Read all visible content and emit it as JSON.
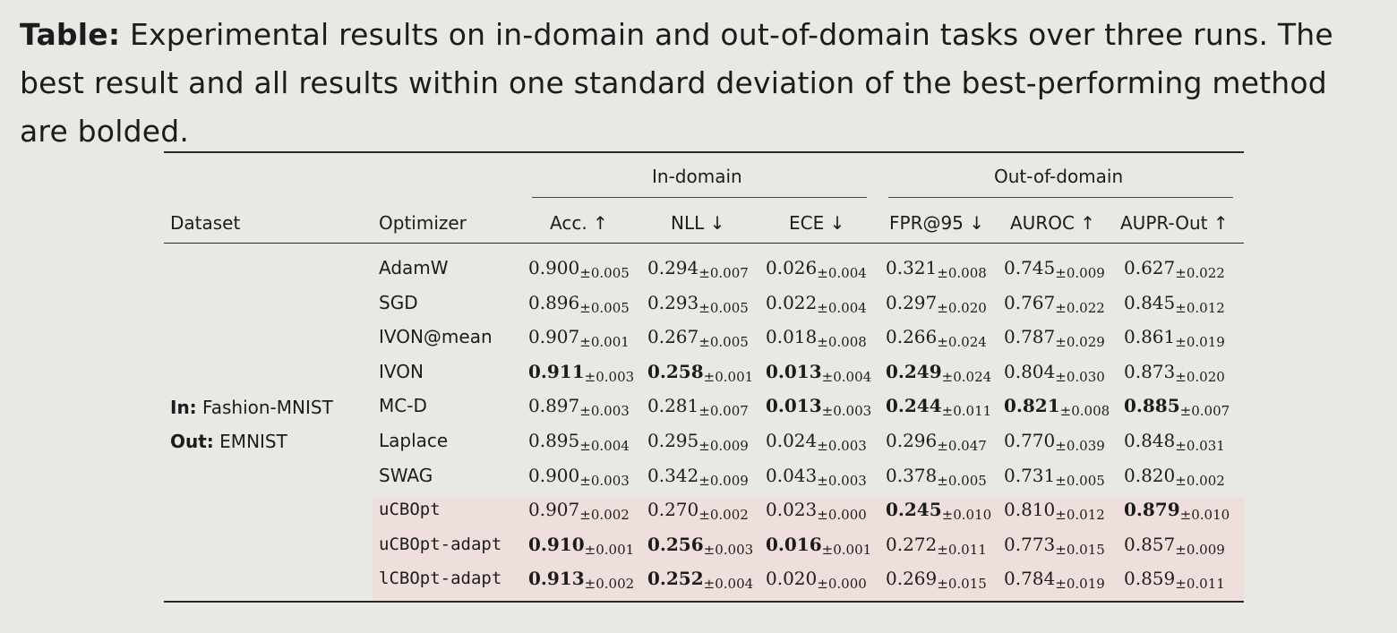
{
  "caption": {
    "label": "Table:",
    "text": "Experimental results on in-domain and out-of-domain tasks over three runs. The best result and all results within one standard deviation of the best-performing method are bolded."
  },
  "groups": {
    "in_domain": "In-domain",
    "out_domain": "Out-of-domain"
  },
  "headers": [
    "Dataset",
    "Optimizer",
    "Acc. ↑",
    "NLL ↓",
    "ECE ↓",
    "FPR@95 ↓",
    "AUROC ↑",
    "AUPR-Out ↑"
  ],
  "dataset": {
    "in_label": "In:",
    "in_value": "Fashion-MNIST",
    "out_label": "Out:",
    "out_value": "EMNIST"
  },
  "rows": [
    {
      "name": "AdamW",
      "mono": false,
      "cells": [
        [
          "0.900",
          "±0.005",
          false
        ],
        [
          "0.294",
          "±0.007",
          false
        ],
        [
          "0.026",
          "±0.004",
          false
        ],
        [
          "0.321",
          "±0.008",
          false
        ],
        [
          "0.745",
          "±0.009",
          false
        ],
        [
          "0.627",
          "±0.022",
          false
        ]
      ]
    },
    {
      "name": "SGD",
      "mono": false,
      "cells": [
        [
          "0.896",
          "±0.005",
          false
        ],
        [
          "0.293",
          "±0.005",
          false
        ],
        [
          "0.022",
          "±0.004",
          false
        ],
        [
          "0.297",
          "±0.020",
          false
        ],
        [
          "0.767",
          "±0.022",
          false
        ],
        [
          "0.845",
          "±0.012",
          false
        ]
      ]
    },
    {
      "name": "IVON@mean",
      "mono": false,
      "cells": [
        [
          "0.907",
          "±0.001",
          false
        ],
        [
          "0.267",
          "±0.005",
          false
        ],
        [
          "0.018",
          "±0.008",
          false
        ],
        [
          "0.266",
          "±0.024",
          false
        ],
        [
          "0.787",
          "±0.029",
          false
        ],
        [
          "0.861",
          "±0.019",
          false
        ]
      ]
    },
    {
      "name": "IVON",
      "mono": false,
      "cells": [
        [
          "0.911",
          "±0.003",
          true
        ],
        [
          "0.258",
          "±0.001",
          true
        ],
        [
          "0.013",
          "±0.004",
          true
        ],
        [
          "0.249",
          "±0.024",
          true
        ],
        [
          "0.804",
          "±0.030",
          false
        ],
        [
          "0.873",
          "±0.020",
          false
        ]
      ]
    },
    {
      "name": "MC-D",
      "mono": false,
      "cells": [
        [
          "0.897",
          "±0.003",
          false
        ],
        [
          "0.281",
          "±0.007",
          false
        ],
        [
          "0.013",
          "±0.003",
          true
        ],
        [
          "0.244",
          "±0.011",
          true
        ],
        [
          "0.821",
          "±0.008",
          true
        ],
        [
          "0.885",
          "±0.007",
          true
        ]
      ]
    },
    {
      "name": "Laplace",
      "mono": false,
      "cells": [
        [
          "0.895",
          "±0.004",
          false
        ],
        [
          "0.295",
          "±0.009",
          false
        ],
        [
          "0.024",
          "±0.003",
          false
        ],
        [
          "0.296",
          "±0.047",
          false
        ],
        [
          "0.770",
          "±0.039",
          false
        ],
        [
          "0.848",
          "±0.031",
          false
        ]
      ]
    },
    {
      "name": "SWAG",
      "mono": false,
      "cells": [
        [
          "0.900",
          "±0.003",
          false
        ],
        [
          "0.342",
          "±0.009",
          false
        ],
        [
          "0.043",
          "±0.003",
          false
        ],
        [
          "0.378",
          "±0.005",
          false
        ],
        [
          "0.731",
          "±0.005",
          false
        ],
        [
          "0.820",
          "±0.002",
          false
        ]
      ]
    },
    {
      "name": "uCBOpt",
      "mono": true,
      "cells": [
        [
          "0.907",
          "±0.002",
          false
        ],
        [
          "0.270",
          "±0.002",
          false
        ],
        [
          "0.023",
          "±0.000",
          false
        ],
        [
          "0.245",
          "±0.010",
          true
        ],
        [
          "0.810",
          "±0.012",
          false
        ],
        [
          "0.879",
          "±0.010",
          true
        ]
      ]
    },
    {
      "name": "uCBOpt-adapt",
      "mono": true,
      "cells": [
        [
          "0.910",
          "±0.001",
          true
        ],
        [
          "0.256",
          "±0.003",
          true
        ],
        [
          "0.016",
          "±0.001",
          true
        ],
        [
          "0.272",
          "±0.011",
          false
        ],
        [
          "0.773",
          "±0.015",
          false
        ],
        [
          "0.857",
          "±0.009",
          false
        ]
      ]
    },
    {
      "name": "lCBOpt-adapt",
      "mono": true,
      "cells": [
        [
          "0.913",
          "±0.002",
          true
        ],
        [
          "0.252",
          "±0.004",
          true
        ],
        [
          "0.020",
          "±0.000",
          false
        ],
        [
          "0.269",
          "±0.015",
          false
        ],
        [
          "0.784",
          "±0.019",
          false
        ],
        [
          "0.859",
          "±0.011",
          false
        ]
      ]
    }
  ]
}
